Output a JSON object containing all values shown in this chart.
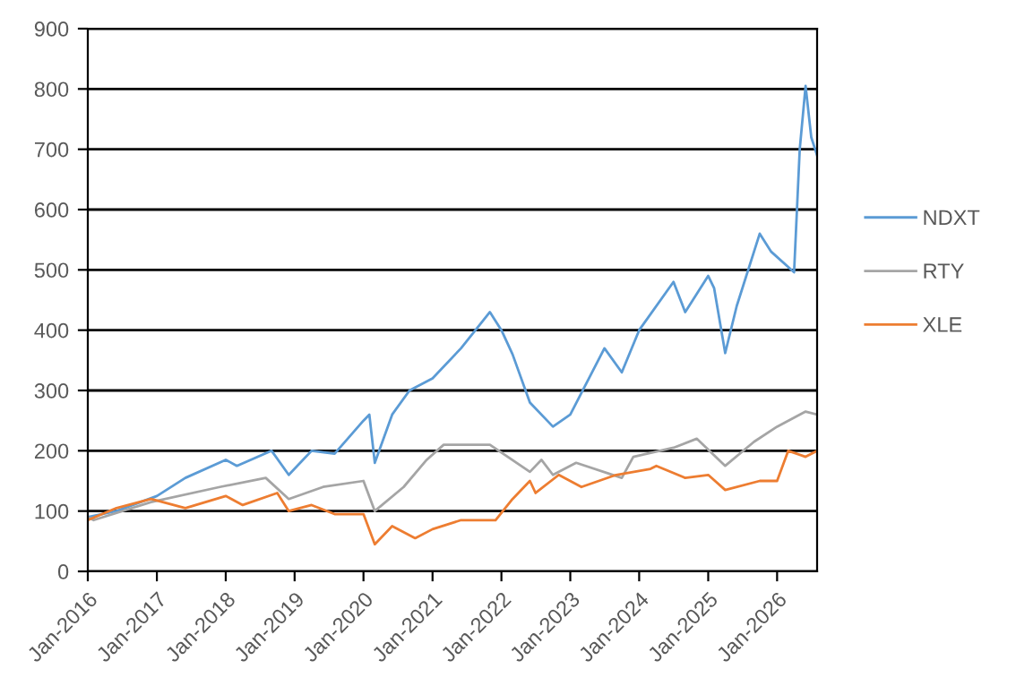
{
  "chart_data": {
    "type": "line",
    "xlim": [
      "2016-01-01",
      "2026-08-01"
    ],
    "ylim": [
      0,
      900
    ],
    "yticks": [
      0,
      100,
      200,
      300,
      400,
      500,
      600,
      700,
      800,
      900
    ],
    "xticks": [
      {
        "value": "2016-01-01",
        "label": "Jan-2016"
      },
      {
        "value": "2017-01-01",
        "label": "Jan-2017"
      },
      {
        "value": "2018-01-01",
        "label": "Jan-2018"
      },
      {
        "value": "2019-01-01",
        "label": "Jan-2019"
      },
      {
        "value": "2020-01-01",
        "label": "Jan-2020"
      },
      {
        "value": "2021-01-01",
        "label": "Jan-2021"
      },
      {
        "value": "2022-01-01",
        "label": "Jan-2022"
      },
      {
        "value": "2023-01-01",
        "label": "Jan-2023"
      },
      {
        "value": "2024-01-01",
        "label": "Jan-2024"
      },
      {
        "value": "2025-01-01",
        "label": "Jan-2025"
      },
      {
        "value": "2026-01-01",
        "label": "Jan-2026"
      }
    ],
    "grid": "y",
    "legend": "right",
    "marker": "none",
    "line_style": "solid",
    "series": [
      {
        "name": "NDXT",
        "color": "#5b9bd5",
        "x": [
          "2016-01",
          "2016-06",
          "2017-01",
          "2017-06",
          "2018-01",
          "2018-03",
          "2018-09",
          "2018-12",
          "2019-04",
          "2019-08",
          "2020-01",
          "2020-02",
          "2020-03",
          "2020-06",
          "2020-09",
          "2021-01",
          "2021-06",
          "2021-11",
          "2022-01",
          "2022-03",
          "2022-06",
          "2022-10",
          "2023-01",
          "2023-07",
          "2023-10",
          "2024-01",
          "2024-07",
          "2024-09",
          "2025-01",
          "2025-02",
          "2025-04",
          "2025-06",
          "2025-10",
          "2025-12",
          "2026-04",
          "2026-05",
          "2026-06",
          "2026-07",
          "2026-08"
        ],
        "values": [
          90,
          100,
          125,
          155,
          185,
          175,
          200,
          160,
          200,
          195,
          250,
          260,
          180,
          260,
          300,
          320,
          370,
          430,
          400,
          360,
          280,
          240,
          260,
          370,
          330,
          400,
          480,
          430,
          490,
          470,
          362,
          440,
          560,
          530,
          496,
          700,
          805,
          720,
          690
        ]
      },
      {
        "name": "RTY",
        "color": "#a5a5a5",
        "x": [
          "2016-01",
          "2016-02",
          "2016-12",
          "2017-12",
          "2018-08",
          "2018-12",
          "2019-06",
          "2020-01",
          "2020-03",
          "2020-08",
          "2020-12",
          "2021-03",
          "2021-11",
          "2022-06",
          "2022-08",
          "2022-10",
          "2023-02",
          "2023-10",
          "2023-12",
          "2024-07",
          "2024-11",
          "2025-04",
          "2025-09",
          "2026-01",
          "2026-06",
          "2026-08"
        ],
        "values": [
          90,
          85,
          115,
          140,
          155,
          120,
          140,
          150,
          100,
          140,
          185,
          210,
          210,
          165,
          185,
          160,
          180,
          155,
          190,
          205,
          220,
          175,
          215,
          240,
          265,
          260
        ]
      },
      {
        "name": "XLE",
        "color": "#ed7d31",
        "x": [
          "2016-01",
          "2016-06",
          "2016-12",
          "2017-06",
          "2018-01",
          "2018-04",
          "2018-10",
          "2018-12",
          "2019-04",
          "2019-08",
          "2020-01",
          "2020-03",
          "2020-06",
          "2020-10",
          "2021-01",
          "2021-06",
          "2021-12",
          "2022-03",
          "2022-06",
          "2022-07",
          "2022-11",
          "2023-03",
          "2023-09",
          "2024-03",
          "2024-04",
          "2024-09",
          "2025-01",
          "2025-04",
          "2025-10",
          "2026-01",
          "2026-03",
          "2026-06",
          "2026-08"
        ],
        "values": [
          85,
          105,
          120,
          105,
          125,
          110,
          130,
          100,
          110,
          95,
          95,
          45,
          75,
          55,
          70,
          85,
          85,
          120,
          150,
          130,
          160,
          140,
          160,
          170,
          175,
          155,
          160,
          135,
          150,
          150,
          200,
          190,
          200
        ]
      }
    ]
  }
}
